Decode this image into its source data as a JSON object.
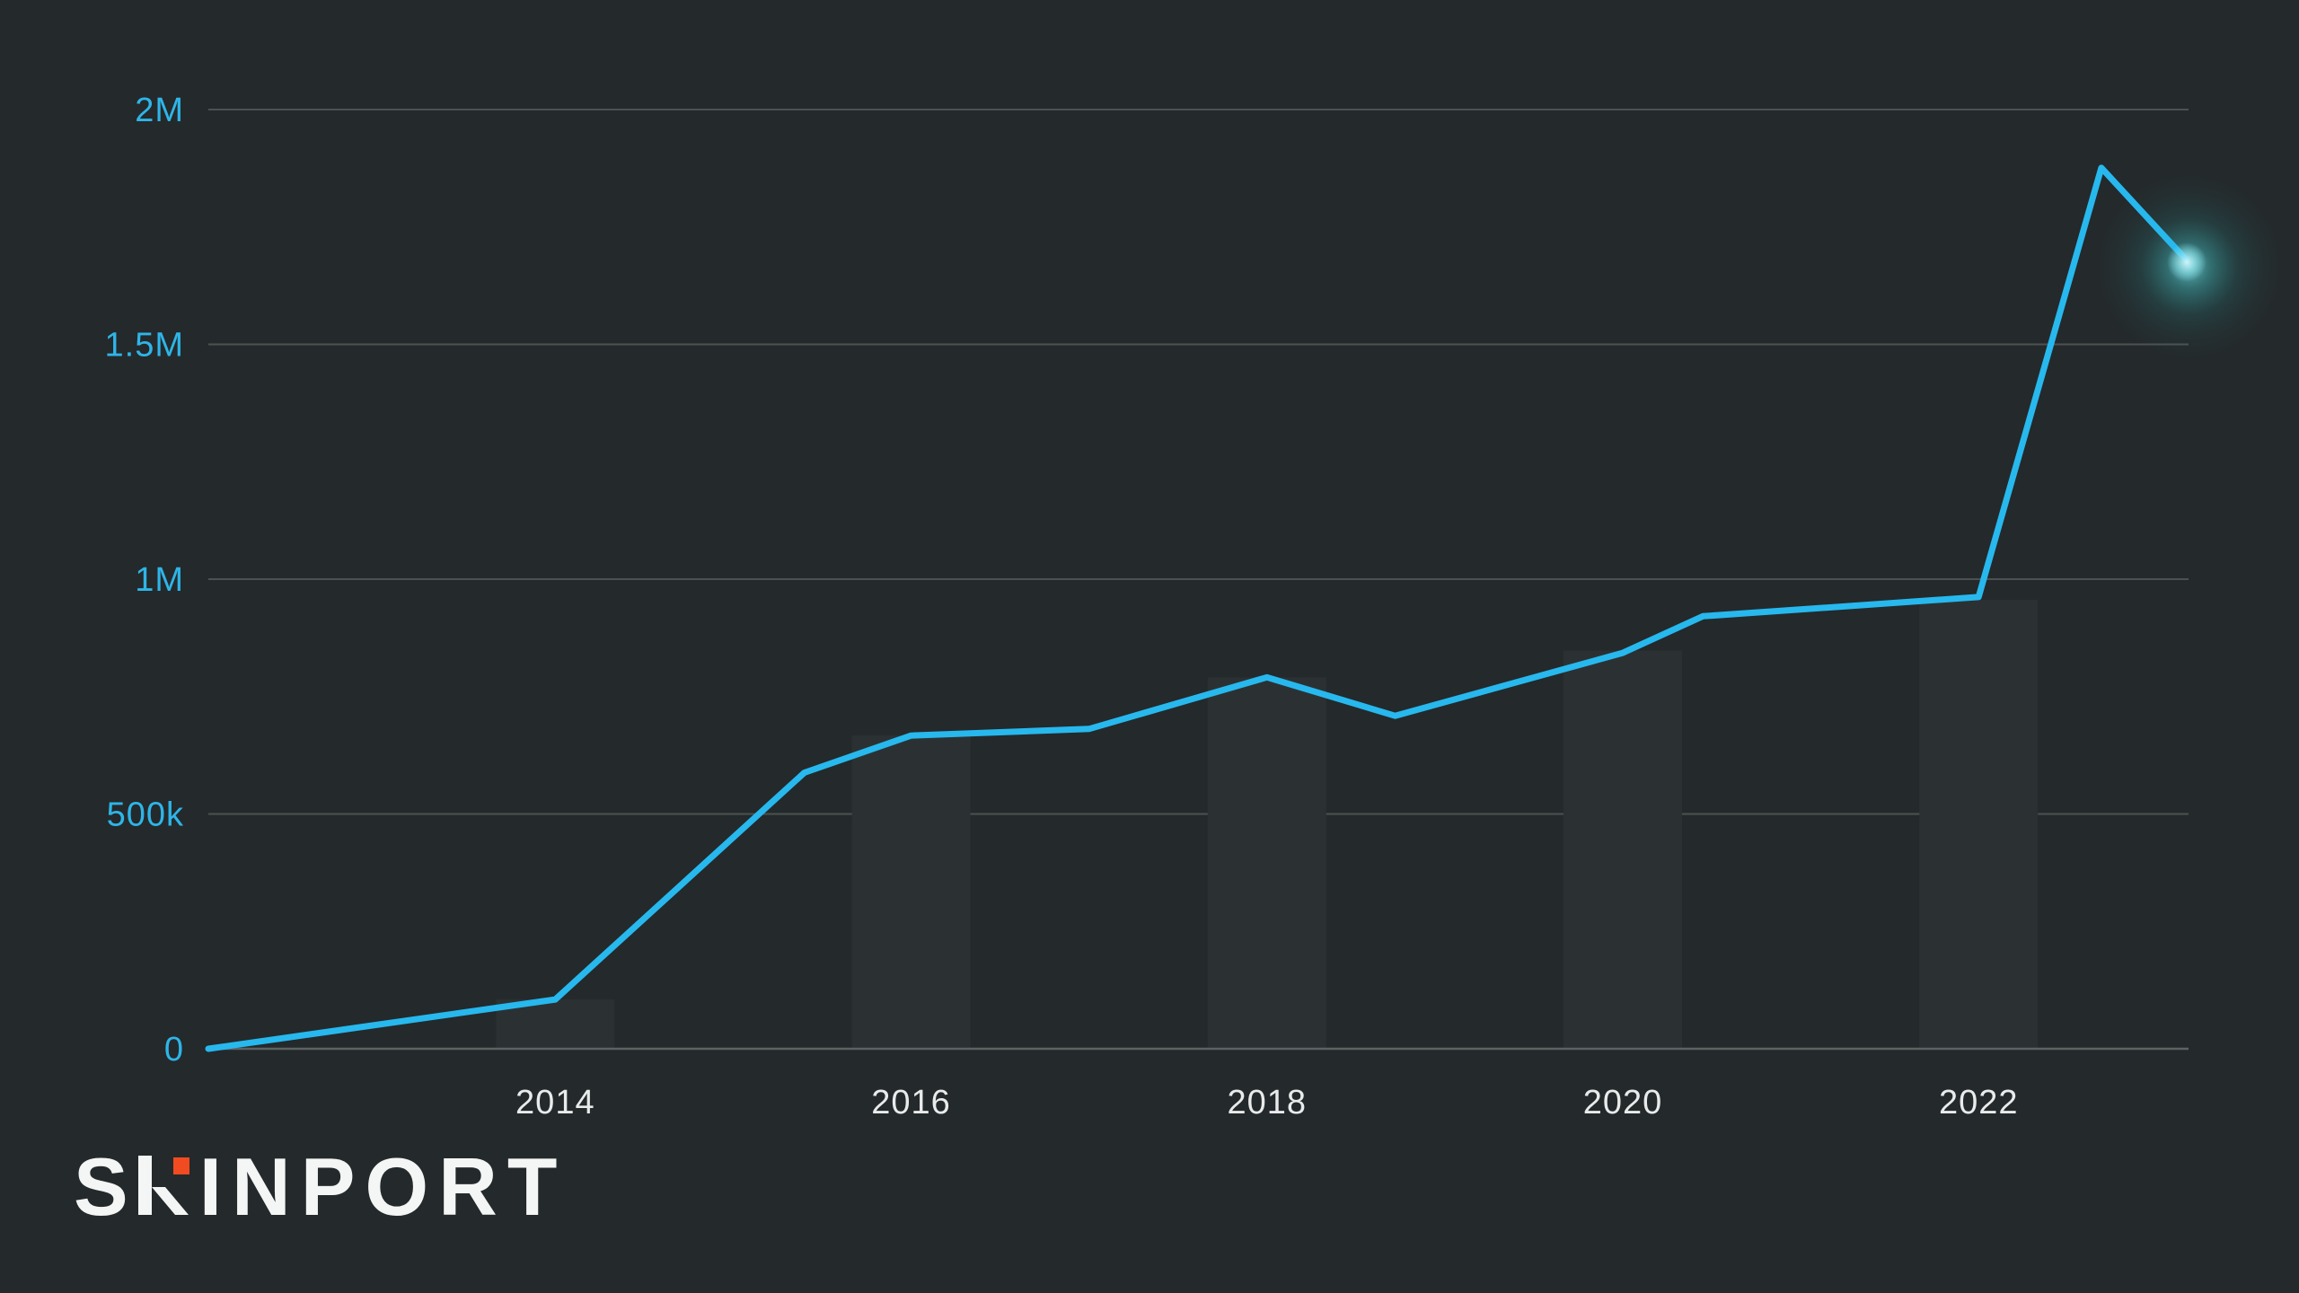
{
  "page": {
    "background": "#24292b"
  },
  "chart_data": {
    "type": "line",
    "title": "",
    "xlabel": "",
    "ylabel": "",
    "xlim": [
      2012.05,
      2023.18
    ],
    "ylim": [
      0,
      2000000
    ],
    "grid": "horizontal-only",
    "legend": "none",
    "y_ticks": [
      {
        "label": "2M",
        "value": 2000000
      },
      {
        "label": "1.5M",
        "value": 1500000
      },
      {
        "label": "1M",
        "value": 1000000
      },
      {
        "label": "500k",
        "value": 500000
      },
      {
        "label": "0",
        "value": 0
      }
    ],
    "x_ticks": [
      {
        "label": "2014",
        "value": 2014
      },
      {
        "label": "2016",
        "value": 2016
      },
      {
        "label": "2018",
        "value": 2018
      },
      {
        "label": "2020",
        "value": 2020
      },
      {
        "label": "2022",
        "value": 2022
      }
    ],
    "series": [
      {
        "name": "value-line",
        "color": "#27b8ee",
        "points": [
          [
            2012.05,
            0
          ],
          [
            2014,
            105000
          ],
          [
            2015.4,
            588000
          ],
          [
            2016,
            667000
          ],
          [
            2017,
            681000
          ],
          [
            2018,
            791000
          ],
          [
            2018.72,
            709000
          ],
          [
            2020,
            843000
          ],
          [
            2020.45,
            921000
          ],
          [
            2022,
            962000
          ],
          [
            2022.69,
            1876000
          ],
          [
            2023.17,
            1679000
          ]
        ]
      }
    ],
    "bars": {
      "name": "year-bars",
      "color": "#2b3133",
      "points": [
        [
          2014,
          105000
        ],
        [
          2016,
          667000
        ],
        [
          2018,
          791000
        ],
        [
          2020,
          848000
        ],
        [
          2022,
          956000
        ]
      ]
    },
    "glow_point": [
      2023.17,
      1679000
    ]
  },
  "axes": {
    "y_label_color": "#2eb5e8",
    "x_label_color": "#e9ebeb",
    "grid_color": "#4c5152",
    "axis_color": "#5d6263"
  },
  "logo": {
    "name": "SKINPORT",
    "prefix": "S",
    "k_letter": "K",
    "suffix": "INPORT",
    "text_color": "#f4f5f5",
    "accent_color": "#f04b21"
  }
}
